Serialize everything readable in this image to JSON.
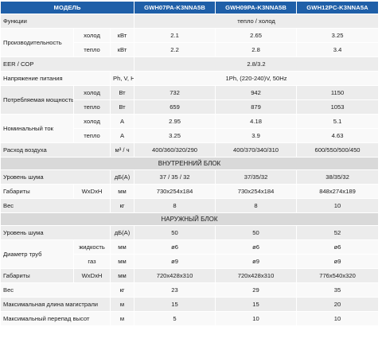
{
  "header": {
    "model_label": "МОДЕЛЬ",
    "models": [
      "GWH07PA-K3NNA5B",
      "GWH09PA-K3NNA5B",
      "GWH12PC-K3NNA5A"
    ]
  },
  "rows": {
    "functions": {
      "label": "Функции",
      "value": "тепло / холод"
    },
    "capacity": {
      "label": "Производительность",
      "cool": {
        "sub": "холод",
        "unit": "кВт",
        "values": [
          "2.1",
          "2.65",
          "3.25"
        ]
      },
      "heat": {
        "sub": "тепло",
        "unit": "кВт",
        "values": [
          "2.2",
          "2.8",
          "3.4"
        ]
      }
    },
    "eer": {
      "label": "EER / COP",
      "value": "2.8/3.2"
    },
    "voltage": {
      "label": "Напряжение питания",
      "unit": "Ph, V, Hz",
      "value": "1Ph, (220-240)V, 50Hz"
    },
    "power": {
      "label": "Потребляемая мощность",
      "cool": {
        "sub": "холод",
        "unit": "Вт",
        "values": [
          "732",
          "942",
          "1150"
        ]
      },
      "heat": {
        "sub": "тепло",
        "unit": "Вт",
        "values": [
          "659",
          "879",
          "1053"
        ]
      }
    },
    "current": {
      "label": "Номинальный ток",
      "cool": {
        "sub": "холод",
        "unit": "А",
        "values": [
          "2.95",
          "4.18",
          "5.1"
        ]
      },
      "heat": {
        "sub": "тепло",
        "unit": "А",
        "values": [
          "3.25",
          "3.9",
          "4.63"
        ]
      }
    },
    "airflow": {
      "label": "Расход воздуха",
      "unit": "м³ / ч",
      "values": [
        "400/360/320/290",
        "400/370/340/310",
        "600/550/500/450"
      ]
    }
  },
  "indoor": {
    "title": "ВНУТРЕННИЙ БЛОК",
    "noise": {
      "label": "Уровень шума",
      "unit": "дБ(А)",
      "values": [
        "37 / 35 / 32",
        "37/35/32",
        "38/35/32"
      ]
    },
    "dims": {
      "label": "Габариты",
      "sub": "WxDxH",
      "unit": "мм",
      "values": [
        "730x254x184",
        "730x254x184",
        "848x274x189"
      ]
    },
    "weight": {
      "label": "Вес",
      "unit": "кг",
      "values": [
        "8",
        "8",
        "10"
      ]
    }
  },
  "outdoor": {
    "title": "НАРУЖНЫЙ БЛОК",
    "noise": {
      "label": "Уровень шума",
      "unit": "дБ(А)",
      "values": [
        "50",
        "50",
        "52"
      ]
    },
    "pipe": {
      "label": "Диаметр труб",
      "liquid": {
        "sub": "жидкость",
        "unit": "мм",
        "values": [
          "ø6",
          "ø6",
          "ø6"
        ]
      },
      "gas": {
        "sub": "газ",
        "unit": "мм",
        "values": [
          "ø9",
          "ø9",
          "ø9"
        ]
      }
    },
    "dims": {
      "label": "Габариты",
      "sub": "WxDxH",
      "unit": "мм",
      "values": [
        "720x428x310",
        "720x428x310",
        "776x540x320"
      ]
    },
    "weight": {
      "label": "Вес",
      "unit": "кг",
      "values": [
        "23",
        "29",
        "35"
      ]
    },
    "max_length": {
      "label": "Максимальная длина магистрали",
      "unit": "м",
      "values": [
        "15",
        "15",
        "20"
      ]
    },
    "max_height": {
      "label": "Максимальный перепад высот",
      "unit": "м",
      "values": [
        "5",
        "10",
        "10"
      ]
    }
  },
  "colors": {
    "header_bg": "#1f5fa8",
    "row_odd": "#ececec",
    "row_even": "#f9f9f9",
    "section_bg": "#d9d9d9"
  }
}
